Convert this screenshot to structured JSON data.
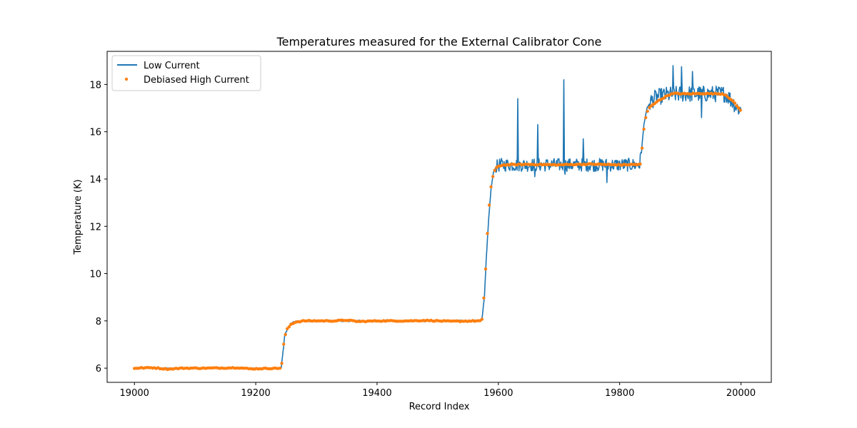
{
  "chart_data": {
    "type": "line",
    "title": "Temperatures measured for the External Calibrator Cone",
    "xlabel": "Record Index",
    "ylabel": "Temperature (K)",
    "xlim": [
      18955,
      20050
    ],
    "ylim": [
      5.4,
      19.4
    ],
    "xticks": [
      19000,
      19200,
      19400,
      19600,
      19800,
      20000
    ],
    "yticks": [
      6,
      8,
      10,
      12,
      14,
      16,
      18
    ],
    "grid": false,
    "legend_position": "top-left",
    "series": [
      {
        "name": "Low Current",
        "style": "line",
        "color": "#1f77b4",
        "baseline": [
          [
            19000,
            6.0
          ],
          [
            19240,
            6.0
          ],
          [
            19242,
            6.0
          ],
          [
            19248,
            7.4
          ],
          [
            19255,
            7.8
          ],
          [
            19262,
            7.95
          ],
          [
            19275,
            8.0
          ],
          [
            19400,
            8.0
          ],
          [
            19570,
            8.0
          ],
          [
            19573,
            8.1
          ],
          [
            19577,
            9.0
          ],
          [
            19580,
            10.6
          ],
          [
            19584,
            12.3
          ],
          [
            19588,
            13.6
          ],
          [
            19592,
            14.3
          ],
          [
            19596,
            14.5
          ],
          [
            19602,
            14.6
          ],
          [
            19700,
            14.6
          ],
          [
            19833,
            14.6
          ],
          [
            19836,
            15.2
          ],
          [
            19840,
            16.3
          ],
          [
            19845,
            17.0
          ],
          [
            19852,
            17.3
          ],
          [
            19860,
            17.45
          ],
          [
            19875,
            17.55
          ],
          [
            19900,
            17.6
          ],
          [
            19975,
            17.6
          ],
          [
            19985,
            17.3
          ],
          [
            19995,
            17.0
          ],
          [
            20000,
            16.95
          ]
        ],
        "noise": [
          {
            "range": [
              19240,
              19575
            ],
            "amplitude": 0.04
          },
          {
            "range": [
              19596,
              19836
            ],
            "amplitude": 0.28
          },
          {
            "range": [
              19850,
              20000
            ],
            "amplitude": 0.35
          }
        ],
        "spikes": [
          [
            19632,
            17.4
          ],
          [
            19665,
            16.3
          ],
          [
            19708,
            18.2
          ],
          [
            19740,
            15.7
          ],
          [
            19888,
            18.8
          ],
          [
            19902,
            18.75
          ],
          [
            19920,
            18.55
          ],
          [
            19779,
            13.85
          ],
          [
            19660,
            14.1
          ],
          [
            19710,
            14.2
          ],
          [
            19935,
            16.6
          ],
          [
            19996,
            16.75
          ]
        ]
      },
      {
        "name": "Debiased High Current",
        "style": "scatter",
        "color": "#ff7f0e",
        "points": [
          [
            19000,
            6.0
          ],
          [
            19030,
            6.02
          ],
          [
            19055,
            5.96
          ],
          [
            19080,
            6.0
          ],
          [
            19120,
            6.0
          ],
          [
            19172,
            6.02
          ],
          [
            19190,
            5.97
          ],
          [
            19240,
            6.0
          ],
          [
            19242,
            6.0
          ],
          [
            19244,
            6.4
          ],
          [
            19246,
            7.0
          ],
          [
            19248,
            7.35
          ],
          [
            19252,
            7.65
          ],
          [
            19258,
            7.85
          ],
          [
            19265,
            7.95
          ],
          [
            19280,
            8.0
          ],
          [
            19330,
            8.0
          ],
          [
            19350,
            8.03
          ],
          [
            19370,
            7.97
          ],
          [
            19400,
            8.0
          ],
          [
            19450,
            8.0
          ],
          [
            19480,
            8.02
          ],
          [
            19520,
            7.98
          ],
          [
            19570,
            8.0
          ],
          [
            19573,
            8.05
          ],
          [
            19575,
            8.6
          ],
          [
            19577,
            9.3
          ],
          [
            19579,
            10.2
          ],
          [
            19581,
            11.2
          ],
          [
            19583,
            12.2
          ],
          [
            19585,
            12.9
          ],
          [
            19587,
            13.5
          ],
          [
            19590,
            14.0
          ],
          [
            19593,
            14.3
          ],
          [
            19596,
            14.45
          ],
          [
            19600,
            14.55
          ],
          [
            19610,
            14.6
          ],
          [
            19650,
            14.62
          ],
          [
            19700,
            14.6
          ],
          [
            19750,
            14.63
          ],
          [
            19800,
            14.6
          ],
          [
            19834,
            14.62
          ],
          [
            19836,
            15.0
          ],
          [
            19838,
            15.6
          ],
          [
            19840,
            16.1
          ],
          [
            19843,
            16.6
          ],
          [
            19847,
            16.95
          ],
          [
            19852,
            17.1
          ],
          [
            19860,
            17.25
          ],
          [
            19870,
            17.4
          ],
          [
            19880,
            17.55
          ],
          [
            19890,
            17.62
          ],
          [
            19910,
            17.6
          ],
          [
            19940,
            17.62
          ],
          [
            19970,
            17.6
          ],
          [
            19975,
            17.55
          ],
          [
            19982,
            17.4
          ],
          [
            19990,
            17.2
          ],
          [
            19996,
            17.0
          ],
          [
            20000,
            16.9
          ]
        ]
      }
    ]
  }
}
